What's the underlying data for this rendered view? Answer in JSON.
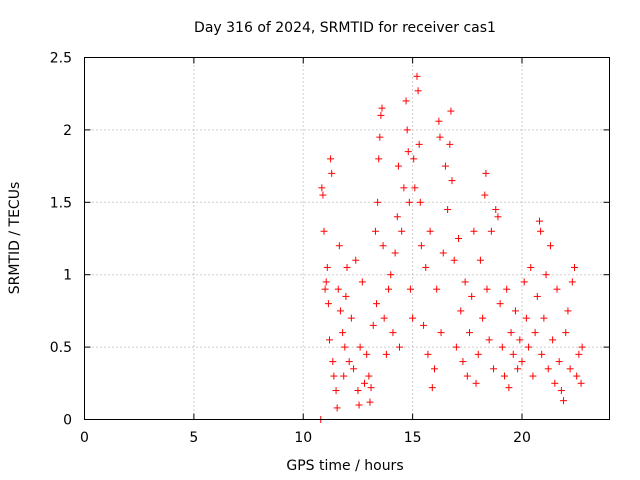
{
  "chart_data": {
    "type": "scatter",
    "title": "Day 316 of 2024, SRMTID for receiver cas1",
    "xlabel": "GPS time / hours",
    "ylabel": "SRMTID / TECUs",
    "xlim": [
      0,
      24
    ],
    "ylim": [
      0,
      2.5
    ],
    "x_ticks": [
      0,
      5,
      10,
      15,
      20
    ],
    "x_tick_labels": [
      "0",
      "5",
      "10",
      "15",
      "20"
    ],
    "y_ticks": [
      0,
      0.5,
      1,
      1.5,
      2,
      2.5
    ],
    "y_tick_labels": [
      "0",
      "0.5",
      "1",
      "1.5",
      "2",
      "2.5"
    ],
    "grid": true,
    "marker": "plus",
    "marker_color": "#ff0000",
    "series": [
      {
        "name": "SRMTID",
        "points": [
          [
            10.8,
            0.0
          ],
          [
            10.85,
            1.6
          ],
          [
            10.9,
            1.55
          ],
          [
            10.95,
            1.3
          ],
          [
            11.0,
            0.9
          ],
          [
            11.05,
            0.95
          ],
          [
            11.1,
            1.05
          ],
          [
            11.15,
            0.8
          ],
          [
            11.2,
            0.55
          ],
          [
            11.25,
            1.8
          ],
          [
            11.3,
            1.7
          ],
          [
            11.35,
            0.4
          ],
          [
            11.4,
            0.3
          ],
          [
            11.5,
            0.2
          ],
          [
            11.55,
            0.08
          ],
          [
            11.6,
            0.9
          ],
          [
            11.65,
            1.2
          ],
          [
            11.7,
            0.75
          ],
          [
            11.8,
            0.6
          ],
          [
            11.85,
            0.3
          ],
          [
            11.9,
            0.5
          ],
          [
            11.95,
            0.85
          ],
          [
            12.0,
            1.05
          ],
          [
            12.1,
            0.4
          ],
          [
            12.2,
            0.7
          ],
          [
            12.3,
            0.35
          ],
          [
            12.4,
            1.1
          ],
          [
            12.5,
            0.2
          ],
          [
            12.55,
            0.1
          ],
          [
            12.6,
            0.5
          ],
          [
            12.7,
            0.95
          ],
          [
            12.8,
            0.25
          ],
          [
            12.9,
            0.45
          ],
          [
            13.0,
            0.3
          ],
          [
            13.05,
            0.12
          ],
          [
            13.1,
            0.22
          ],
          [
            13.2,
            0.65
          ],
          [
            13.3,
            1.3
          ],
          [
            13.35,
            0.8
          ],
          [
            13.4,
            1.5
          ],
          [
            13.45,
            1.8
          ],
          [
            13.5,
            1.95
          ],
          [
            13.55,
            2.1
          ],
          [
            13.6,
            2.15
          ],
          [
            13.65,
            1.2
          ],
          [
            13.7,
            0.7
          ],
          [
            13.8,
            0.45
          ],
          [
            13.9,
            0.9
          ],
          [
            14.0,
            1.0
          ],
          [
            14.1,
            0.6
          ],
          [
            14.2,
            1.15
          ],
          [
            14.3,
            1.4
          ],
          [
            14.35,
            1.75
          ],
          [
            14.4,
            0.5
          ],
          [
            14.5,
            1.3
          ],
          [
            14.6,
            1.6
          ],
          [
            14.7,
            2.2
          ],
          [
            14.75,
            2.0
          ],
          [
            14.8,
            1.85
          ],
          [
            14.85,
            1.5
          ],
          [
            14.9,
            0.9
          ],
          [
            15.0,
            0.7
          ],
          [
            15.05,
            1.8
          ],
          [
            15.1,
            1.6
          ],
          [
            15.2,
            2.37
          ],
          [
            15.25,
            2.27
          ],
          [
            15.3,
            1.9
          ],
          [
            15.35,
            1.5
          ],
          [
            15.4,
            1.2
          ],
          [
            15.5,
            0.65
          ],
          [
            15.6,
            1.05
          ],
          [
            15.7,
            0.45
          ],
          [
            15.8,
            1.3
          ],
          [
            15.9,
            0.22
          ],
          [
            16.0,
            0.35
          ],
          [
            16.1,
            0.9
          ],
          [
            16.2,
            2.06
          ],
          [
            16.25,
            1.95
          ],
          [
            16.3,
            0.6
          ],
          [
            16.4,
            1.15
          ],
          [
            16.5,
            1.75
          ],
          [
            16.6,
            1.45
          ],
          [
            16.7,
            1.9
          ],
          [
            16.75,
            2.13
          ],
          [
            16.8,
            1.65
          ],
          [
            16.9,
            1.1
          ],
          [
            17.0,
            0.5
          ],
          [
            17.1,
            1.25
          ],
          [
            17.2,
            0.75
          ],
          [
            17.3,
            0.4
          ],
          [
            17.4,
            0.95
          ],
          [
            17.5,
            0.3
          ],
          [
            17.6,
            0.6
          ],
          [
            17.7,
            0.85
          ],
          [
            17.8,
            1.3
          ],
          [
            17.9,
            0.25
          ],
          [
            18.0,
            0.45
          ],
          [
            18.1,
            1.1
          ],
          [
            18.2,
            0.7
          ],
          [
            18.3,
            1.55
          ],
          [
            18.35,
            1.7
          ],
          [
            18.4,
            0.9
          ],
          [
            18.5,
            0.55
          ],
          [
            18.6,
            1.3
          ],
          [
            18.7,
            0.35
          ],
          [
            18.8,
            1.45
          ],
          [
            18.9,
            1.4
          ],
          [
            19.0,
            0.8
          ],
          [
            19.1,
            0.5
          ],
          [
            19.2,
            0.3
          ],
          [
            19.3,
            0.9
          ],
          [
            19.4,
            0.22
          ],
          [
            19.5,
            0.6
          ],
          [
            19.6,
            0.45
          ],
          [
            19.7,
            0.75
          ],
          [
            19.8,
            0.35
          ],
          [
            19.9,
            0.55
          ],
          [
            20.0,
            0.4
          ],
          [
            20.1,
            0.95
          ],
          [
            20.2,
            0.7
          ],
          [
            20.3,
            0.5
          ],
          [
            20.4,
            1.05
          ],
          [
            20.5,
            0.3
          ],
          [
            20.6,
            0.6
          ],
          [
            20.7,
            0.85
          ],
          [
            20.8,
            1.37
          ],
          [
            20.85,
            1.3
          ],
          [
            20.9,
            0.45
          ],
          [
            21.0,
            0.7
          ],
          [
            21.1,
            1.0
          ],
          [
            21.2,
            0.35
          ],
          [
            21.3,
            1.2
          ],
          [
            21.4,
            0.55
          ],
          [
            21.5,
            0.25
          ],
          [
            21.6,
            0.9
          ],
          [
            21.7,
            0.4
          ],
          [
            21.8,
            0.2
          ],
          [
            21.9,
            0.13
          ],
          [
            22.0,
            0.6
          ],
          [
            22.1,
            0.75
          ],
          [
            22.2,
            0.35
          ],
          [
            22.3,
            0.95
          ],
          [
            22.4,
            1.05
          ],
          [
            22.5,
            0.3
          ],
          [
            22.6,
            0.45
          ],
          [
            22.7,
            0.25
          ],
          [
            22.75,
            0.5
          ]
        ]
      }
    ]
  }
}
